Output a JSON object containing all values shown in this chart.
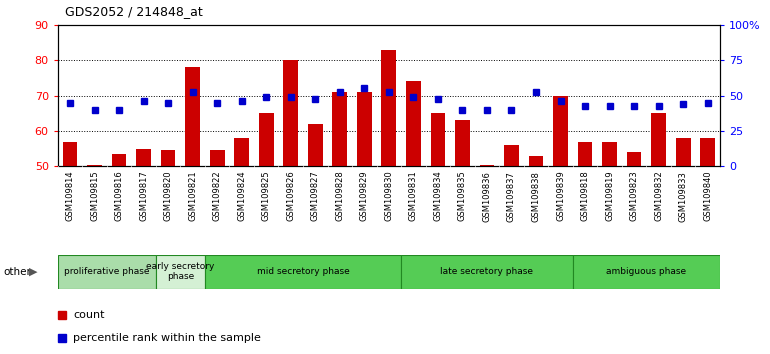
{
  "title": "GDS2052 / 214848_at",
  "samples": [
    "GSM109814",
    "GSM109815",
    "GSM109816",
    "GSM109817",
    "GSM109820",
    "GSM109821",
    "GSM109822",
    "GSM109824",
    "GSM109825",
    "GSM109826",
    "GSM109827",
    "GSM109828",
    "GSM109829",
    "GSM109830",
    "GSM109831",
    "GSM109834",
    "GSM109835",
    "GSM109836",
    "GSM109837",
    "GSM109838",
    "GSM109839",
    "GSM109818",
    "GSM109819",
    "GSM109823",
    "GSM109832",
    "GSM109833",
    "GSM109840"
  ],
  "counts": [
    57,
    50.5,
    53.5,
    55,
    54.5,
    78,
    54.5,
    58,
    65,
    80,
    62,
    71,
    71,
    83,
    74,
    65,
    63,
    50.5,
    56,
    53,
    70,
    57,
    57,
    54,
    65,
    58,
    58
  ],
  "percentiles": [
    68,
    66,
    66,
    68.5,
    68,
    71,
    68,
    68.5,
    69.5,
    69.5,
    69,
    71,
    72,
    71,
    69.5,
    69,
    66,
    66,
    66,
    71,
    68.5,
    67,
    67,
    67,
    67,
    67.5,
    68
  ],
  "phases": [
    {
      "name": "proliferative phase",
      "start": 0,
      "end": 4,
      "color": "#aaddaa"
    },
    {
      "name": "early secretory\nphase",
      "start": 4,
      "end": 6,
      "color": "#d4f0d4"
    },
    {
      "name": "mid secretory phase",
      "start": 6,
      "end": 14,
      "color": "#55cc55"
    },
    {
      "name": "late secretory phase",
      "start": 14,
      "end": 21,
      "color": "#55cc55"
    },
    {
      "name": "ambiguous phase",
      "start": 21,
      "end": 27,
      "color": "#55cc55"
    }
  ],
  "bar_color": "#cc0000",
  "dot_color": "#0000cc",
  "ylim_left": [
    50,
    90
  ],
  "ylim_right": [
    0,
    100
  ],
  "yticks_left": [
    50,
    60,
    70,
    80,
    90
  ],
  "yticks_right": [
    0,
    25,
    50,
    75,
    100
  ],
  "ytick_labels_right": [
    "0",
    "25",
    "50",
    "75",
    "100%"
  ],
  "xticklabel_bg": "#cccccc",
  "plot_bg": "#ffffff"
}
